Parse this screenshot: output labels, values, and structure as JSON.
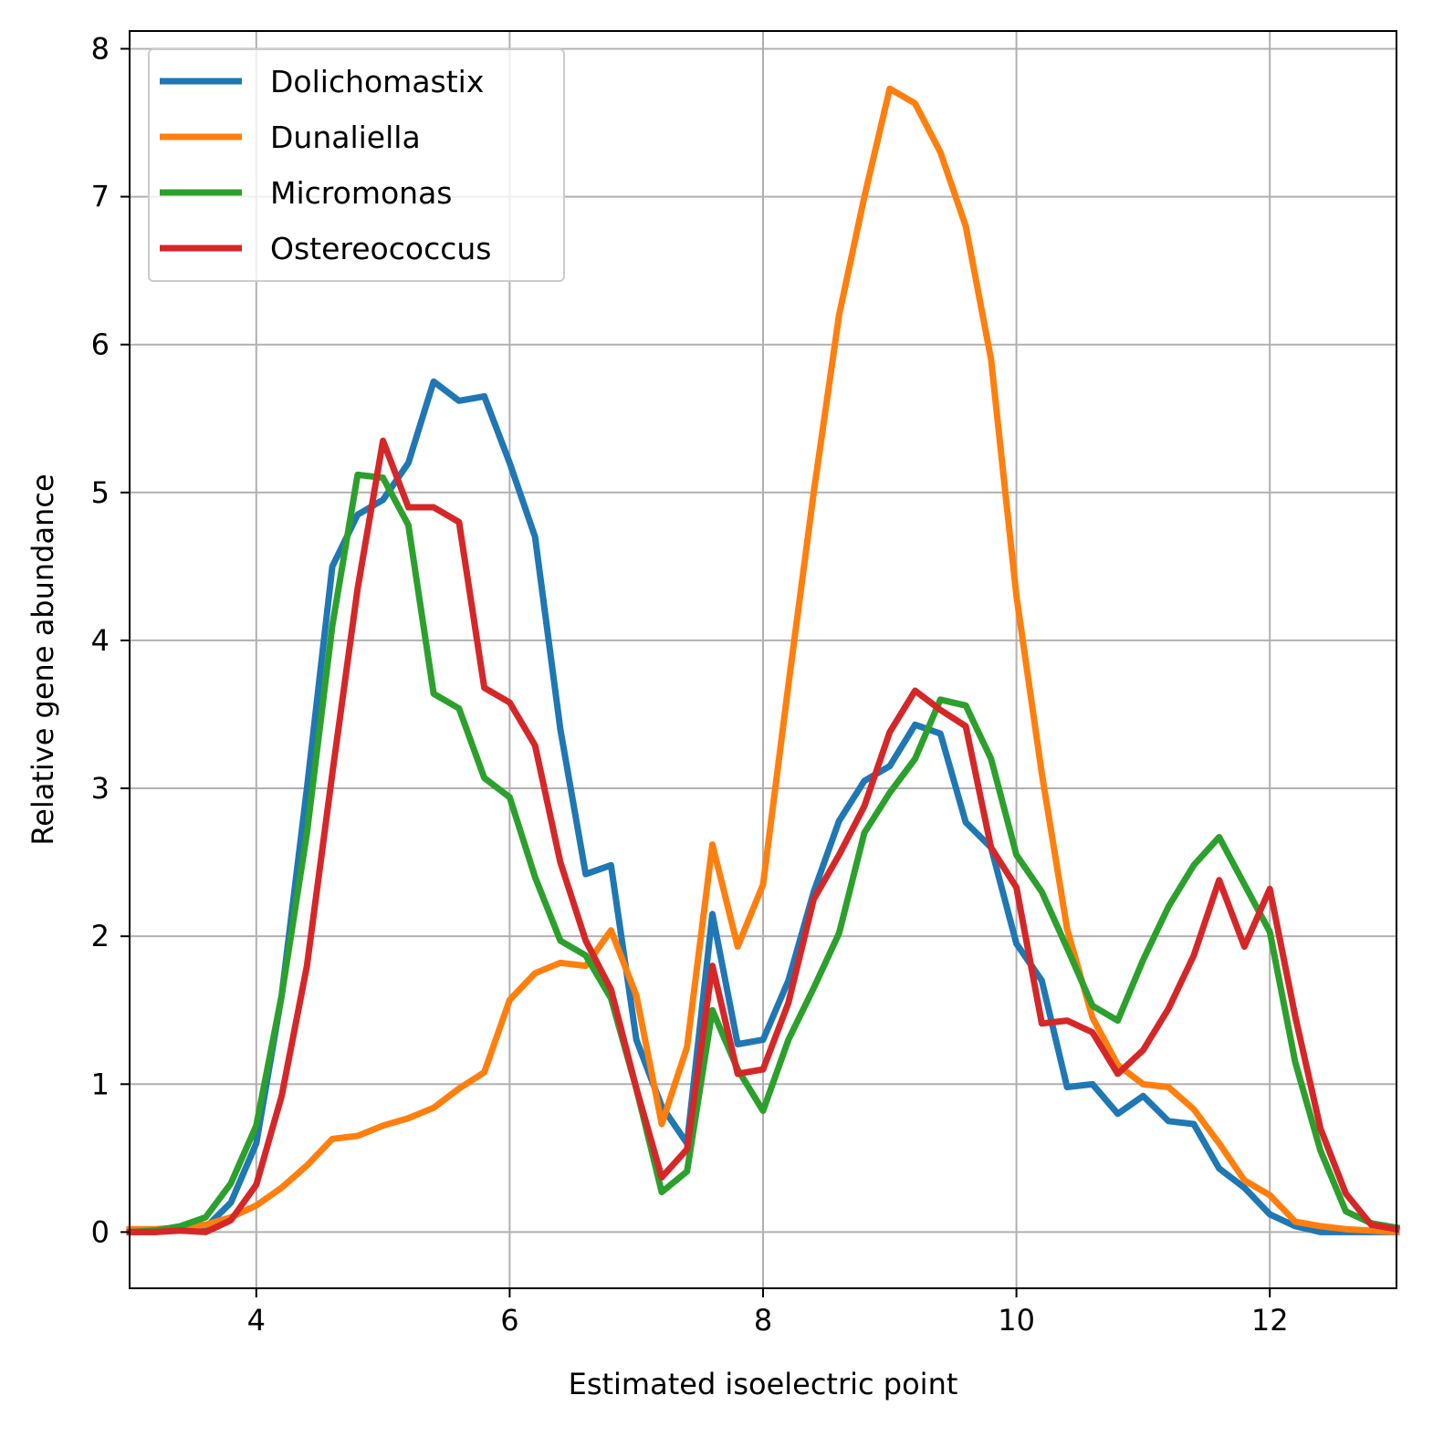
{
  "chart_data": {
    "type": "line",
    "title": "",
    "xlabel": "Estimated isoelectric point",
    "ylabel": "Relative gene abundance",
    "xlim": [
      3,
      13
    ],
    "ylim": [
      -0.38,
      8.12
    ],
    "xticks": [
      4,
      6,
      8,
      10,
      12
    ],
    "yticks": [
      0,
      1,
      2,
      3,
      4,
      5,
      6,
      7,
      8
    ],
    "xtick_labels": [
      "4",
      "6",
      "8",
      "10",
      "12"
    ],
    "ytick_labels": [
      "0",
      "1",
      "2",
      "3",
      "4",
      "5",
      "6",
      "7",
      "8"
    ],
    "grid": true,
    "legend_position": "top-left",
    "x": [
      3.0,
      3.2,
      3.4,
      3.6,
      3.8,
      4.0,
      4.2,
      4.4,
      4.6,
      4.8,
      5.0,
      5.2,
      5.4,
      5.6,
      5.8,
      6.0,
      6.2,
      6.4,
      6.6,
      6.8,
      7.0,
      7.2,
      7.4,
      7.6,
      7.8,
      8.0,
      8.2,
      8.4,
      8.6,
      8.8,
      9.0,
      9.2,
      9.4,
      9.6,
      9.8,
      10.0,
      10.2,
      10.4,
      10.6,
      10.8,
      11.0,
      11.2,
      11.4,
      11.6,
      11.8,
      12.0,
      12.2,
      12.4,
      12.6,
      12.8,
      13.0
    ],
    "series": [
      {
        "name": "Dolichomastix",
        "color": "#1f77b4",
        "values": [
          0.0,
          0.0,
          0.02,
          0.03,
          0.2,
          0.6,
          1.6,
          3.0,
          4.5,
          4.85,
          4.95,
          5.2,
          5.75,
          5.62,
          5.65,
          5.2,
          4.7,
          3.4,
          2.42,
          2.48,
          1.3,
          0.85,
          0.6,
          2.15,
          1.27,
          1.3,
          1.7,
          2.3,
          2.78,
          3.05,
          3.15,
          3.43,
          3.37,
          2.77,
          2.6,
          1.95,
          1.7,
          0.98,
          1.0,
          0.8,
          0.92,
          0.75,
          0.73,
          0.43,
          0.3,
          0.12,
          0.04,
          0.0,
          0.0,
          0.0,
          0.0
        ]
      },
      {
        "name": "Dunaliella",
        "color": "#ff7f0e",
        "values": [
          0.02,
          0.02,
          0.03,
          0.05,
          0.1,
          0.18,
          0.3,
          0.45,
          0.63,
          0.65,
          0.72,
          0.77,
          0.84,
          0.97,
          1.08,
          1.57,
          1.75,
          1.82,
          1.8,
          2.04,
          1.6,
          0.73,
          1.25,
          2.62,
          1.93,
          2.35,
          3.7,
          5.0,
          6.2,
          7.0,
          7.73,
          7.63,
          7.3,
          6.8,
          5.9,
          4.3,
          3.1,
          2.05,
          1.45,
          1.13,
          1.0,
          0.98,
          0.83,
          0.6,
          0.35,
          0.25,
          0.07,
          0.04,
          0.02,
          0.01,
          0.0
        ]
      },
      {
        "name": "Micromonas",
        "color": "#2ca02c",
        "values": [
          0.0,
          0.01,
          0.04,
          0.1,
          0.33,
          0.72,
          1.6,
          2.7,
          4.1,
          5.12,
          5.1,
          4.78,
          3.64,
          3.54,
          3.07,
          2.94,
          2.4,
          1.97,
          1.87,
          1.58,
          0.97,
          0.27,
          0.41,
          1.5,
          1.1,
          0.82,
          1.3,
          1.65,
          2.02,
          2.7,
          2.97,
          3.2,
          3.6,
          3.56,
          3.2,
          2.55,
          2.3,
          1.92,
          1.53,
          1.43,
          1.84,
          2.2,
          2.48,
          2.67,
          2.35,
          2.03,
          1.15,
          0.55,
          0.14,
          0.06,
          0.03
        ]
      },
      {
        "name": "Ostereococcus",
        "color": "#d62728",
        "values": [
          0.0,
          0.0,
          0.01,
          0.0,
          0.08,
          0.32,
          0.92,
          1.8,
          3.1,
          4.35,
          5.35,
          4.9,
          4.9,
          4.8,
          3.68,
          3.58,
          3.29,
          2.5,
          1.97,
          1.64,
          0.97,
          0.37,
          0.56,
          1.8,
          1.07,
          1.1,
          1.55,
          2.25,
          2.55,
          2.88,
          3.38,
          3.66,
          3.53,
          3.42,
          2.6,
          2.33,
          1.41,
          1.43,
          1.35,
          1.07,
          1.23,
          1.51,
          1.87,
          2.38,
          1.93,
          2.32,
          1.46,
          0.7,
          0.26,
          0.05,
          0.02
        ]
      }
    ]
  }
}
